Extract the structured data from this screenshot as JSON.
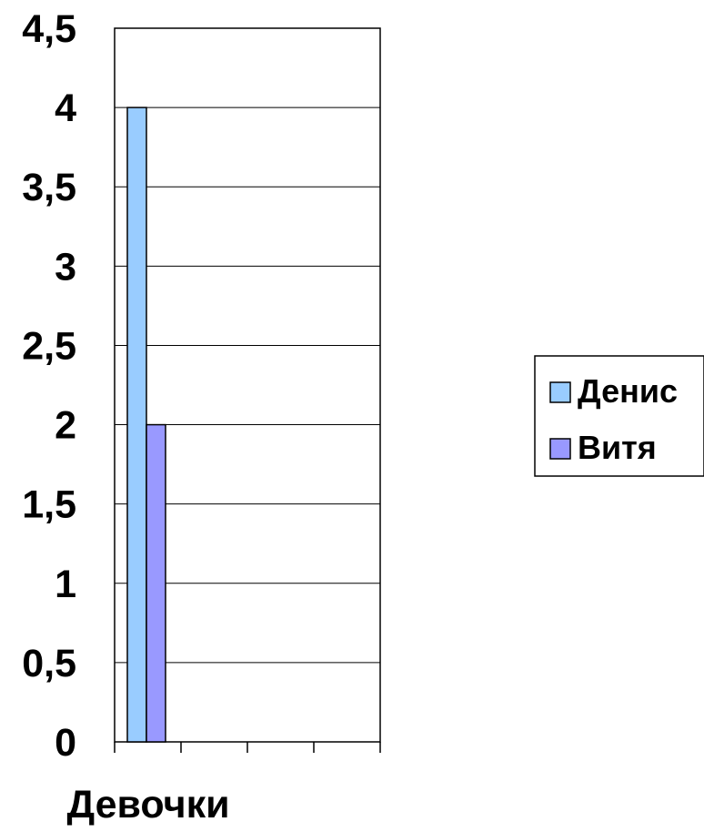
{
  "chart_data": {
    "type": "bar",
    "categories": [
      "Девочки",
      "",
      "",
      ""
    ],
    "series": [
      {
        "name": "Денис",
        "values": [
          4,
          null,
          null,
          null
        ],
        "color": "#99CCFF"
      },
      {
        "name": "Витя",
        "values": [
          2,
          null,
          null,
          null
        ],
        "color": "#9999FF"
      }
    ],
    "ylim": [
      0,
      4.5
    ],
    "yticks": [
      "0",
      "0,5",
      "1",
      "1,5",
      "2",
      "2,5",
      "3",
      "3,5",
      "4",
      "4,5"
    ],
    "grid": true,
    "legend_position": "right",
    "xlabel": "Девочки"
  }
}
